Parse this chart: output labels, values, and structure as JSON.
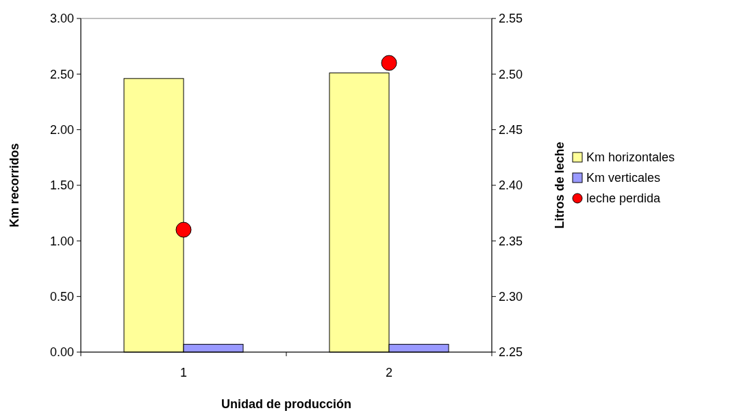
{
  "chart_data": {
    "type": "bar",
    "xlabel": "Unidad de producción",
    "ylabel": "Km recorridos",
    "y2label": "Litros de leche",
    "categories": [
      "1",
      "2"
    ],
    "series": [
      {
        "name": "Km horizontales",
        "color": "#ffff99",
        "values": [
          2.46,
          2.51
        ]
      },
      {
        "name": "Km verticales",
        "color": "#9999ff",
        "values": [
          0.07,
          0.07
        ]
      },
      {
        "name": "leche perdida",
        "type": "scatter",
        "axis": "y2",
        "color": "#ff0000",
        "x": [
          "1",
          "2"
        ],
        "values": [
          2.36,
          2.51
        ]
      }
    ],
    "ylim": [
      0,
      3
    ],
    "yticks": [
      {
        "value": 0,
        "label": "0.00"
      },
      {
        "value": 0.5,
        "label": "0.50"
      },
      {
        "value": 1,
        "label": "1.00"
      },
      {
        "value": 1.5,
        "label": "1.50"
      },
      {
        "value": 2,
        "label": "2.00"
      },
      {
        "value": 2.5,
        "label": "2.50"
      },
      {
        "value": 3,
        "label": "3.00"
      }
    ],
    "y2lim": [
      2.25,
      2.55
    ],
    "y2ticks": [
      2.25,
      {
        "value": 2.3,
        "label": "2.30"
      },
      2.35,
      {
        "value": 2.4,
        "label": "2.40"
      },
      2.45,
      {
        "value": 2.5,
        "label": "2.50"
      },
      2.55
    ],
    "marker": "circle",
    "legend": "right",
    "grid": false
  }
}
